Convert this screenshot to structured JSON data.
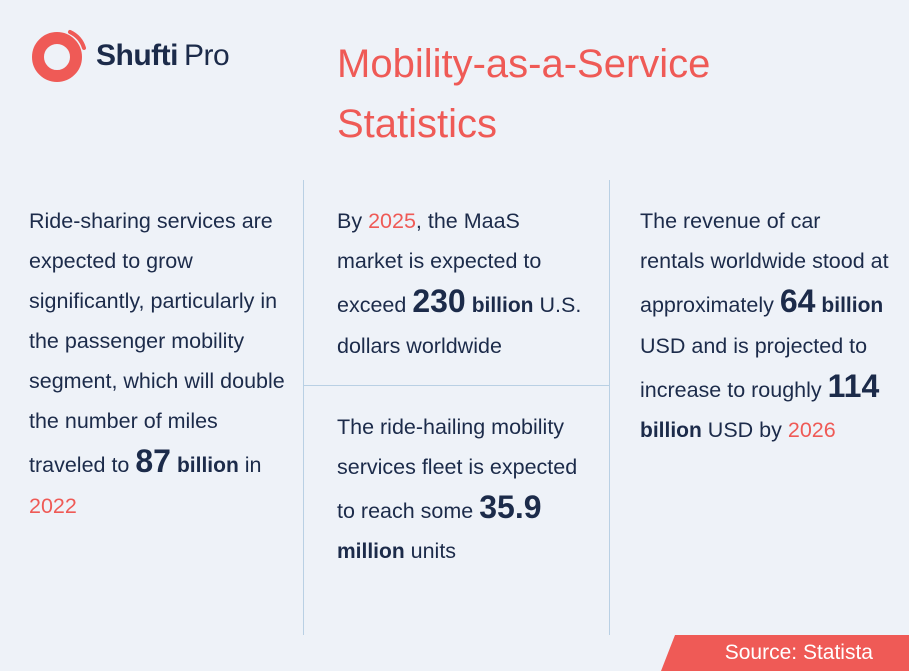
{
  "brand": {
    "name_bold": "Shufti",
    "name_light": "Pro",
    "color_primary": "#ef5a56",
    "color_text": "#1c2b4a"
  },
  "title": "Mobility-as-a-Service Statistics",
  "stats": {
    "ride_sharing": {
      "text_1": "Ride-sharing services are expected to grow significantly, particularly in the passenger mobility segment, which will double the number of miles traveled to ",
      "value": "87",
      "unit": "billion",
      "text_2": " in ",
      "year": "2022"
    },
    "maas_market": {
      "text_1": "By ",
      "year": "2025",
      "text_2": ", the MaaS market is expected to exceed ",
      "value": "230",
      "unit": "billion",
      "text_3": " U.S. dollars worldwide"
    },
    "fleet": {
      "text_1": "The ride-hailing mobility services fleet is expected to reach some ",
      "value": "35.9",
      "unit": "million",
      "text_2": " units"
    },
    "car_rentals": {
      "text_1": "The revenue of car rentals worldwide stood at approximately ",
      "value_1": "64",
      "unit_1": "billion",
      "text_2": " USD and is projected to increase to roughly ",
      "value_2": "114",
      "unit_2": "billion",
      "text_3": " USD by ",
      "year": "2026"
    }
  },
  "source": "Source: Statista"
}
